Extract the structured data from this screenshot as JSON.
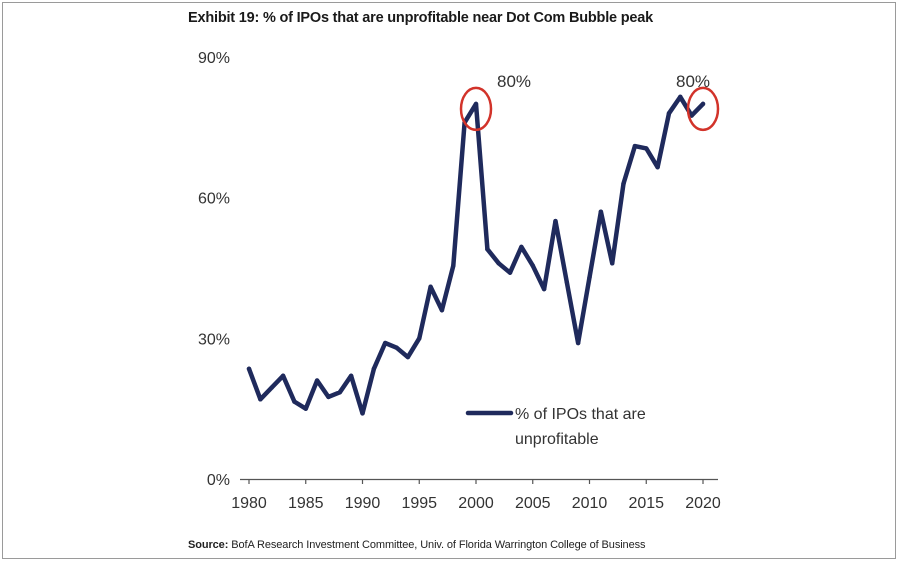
{
  "title": "Exhibit 19: % of IPOs that are unprofitable near Dot Com Bubble peak",
  "source": {
    "label": "Source:",
    "text": "BofA Research Investment Committee, Univ. of Florida Warrington College of Business"
  },
  "colors": {
    "line": "#1f2a5c",
    "highlight": "#d2332a",
    "axis": "#555555"
  },
  "chart_data": {
    "type": "line",
    "title": "Exhibit 19: % of IPOs that are unprofitable near Dot Com Bubble peak",
    "xlabel": "",
    "ylabel": "",
    "xlim": [
      1980,
      2020
    ],
    "ylim": [
      0,
      90
    ],
    "grid": false,
    "legend": "center-right",
    "y_ticks": [
      "0%",
      "30%",
      "60%",
      "90%"
    ],
    "y_tick_values": [
      0,
      30,
      60,
      90
    ],
    "x_ticks": [
      "1980",
      "1985",
      "1990",
      "1995",
      "2000",
      "2005",
      "2010",
      "2015",
      "2020"
    ],
    "x_tick_values": [
      1980,
      1985,
      1990,
      1995,
      2000,
      2005,
      2010,
      2015,
      2020
    ],
    "series": [
      {
        "name": "% of IPOs that are unprofitable",
        "legend_lines": [
          "% of IPOs that are",
          "unprofitable"
        ],
        "x": [
          1980,
          1981,
          1982,
          1983,
          1984,
          1985,
          1986,
          1987,
          1988,
          1989,
          1990,
          1991,
          1992,
          1993,
          1994,
          1995,
          1996,
          1997,
          1998,
          1999,
          2000,
          2001,
          2002,
          2003,
          2004,
          2005,
          2006,
          2007,
          2008,
          2009,
          2010,
          2011,
          2012,
          2013,
          2014,
          2015,
          2016,
          2017,
          2018,
          2019,
          2020
        ],
        "y": [
          23.5,
          17,
          19.5,
          22,
          16.5,
          15,
          21,
          17.5,
          18.5,
          22,
          14,
          23.5,
          29,
          28,
          26,
          30,
          41,
          36,
          45.5,
          76,
          80,
          49,
          46,
          44,
          49.5,
          45.5,
          40.5,
          55,
          42,
          29,
          43,
          57,
          46,
          63,
          71,
          70.5,
          66.5,
          78,
          81.5,
          77.5,
          80
        ]
      }
    ],
    "annotations": [
      {
        "label": "80%",
        "x": 2000,
        "y": 80,
        "circled": true
      },
      {
        "label": "80%",
        "x": 2020,
        "y": 80,
        "circled": true
      }
    ]
  }
}
